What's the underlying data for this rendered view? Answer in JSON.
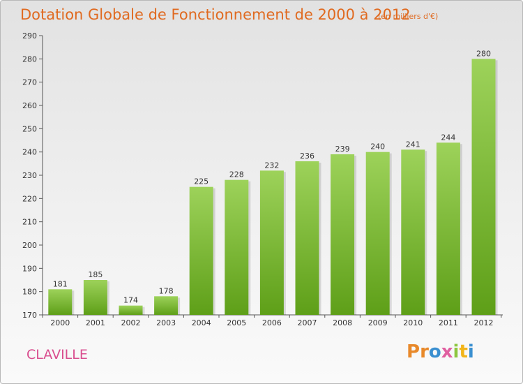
{
  "header": {
    "title": "Dotation Globale de Fonctionnement de 2000 à 2012",
    "subtitle": "(en milliers d'€)"
  },
  "footer": {
    "commune": "CLAVILLE",
    "logo_text": "Proxiti",
    "logo_colors": [
      "#e8892a",
      "#e8892a",
      "#3a8fd0",
      "#e05fa0",
      "#8dc63f",
      "#f2b51a",
      "#3a8fd0"
    ]
  },
  "colors": {
    "bar_top": "#9dd25a",
    "bar_bottom": "#5e9f18",
    "title": "#e06a20",
    "commune": "#d94e8f"
  },
  "chart_data": {
    "type": "bar",
    "categories": [
      "2000",
      "2001",
      "2002",
      "2003",
      "2004",
      "2005",
      "2006",
      "2007",
      "2008",
      "2009",
      "2010",
      "2011",
      "2012"
    ],
    "values": [
      181,
      185,
      174,
      178,
      225,
      228,
      232,
      236,
      239,
      240,
      241,
      244,
      280
    ],
    "ylim": [
      170,
      290
    ],
    "yticks": [
      170,
      180,
      190,
      200,
      210,
      220,
      230,
      240,
      250,
      260,
      270,
      280,
      290
    ],
    "grid": false,
    "legend": "none"
  }
}
